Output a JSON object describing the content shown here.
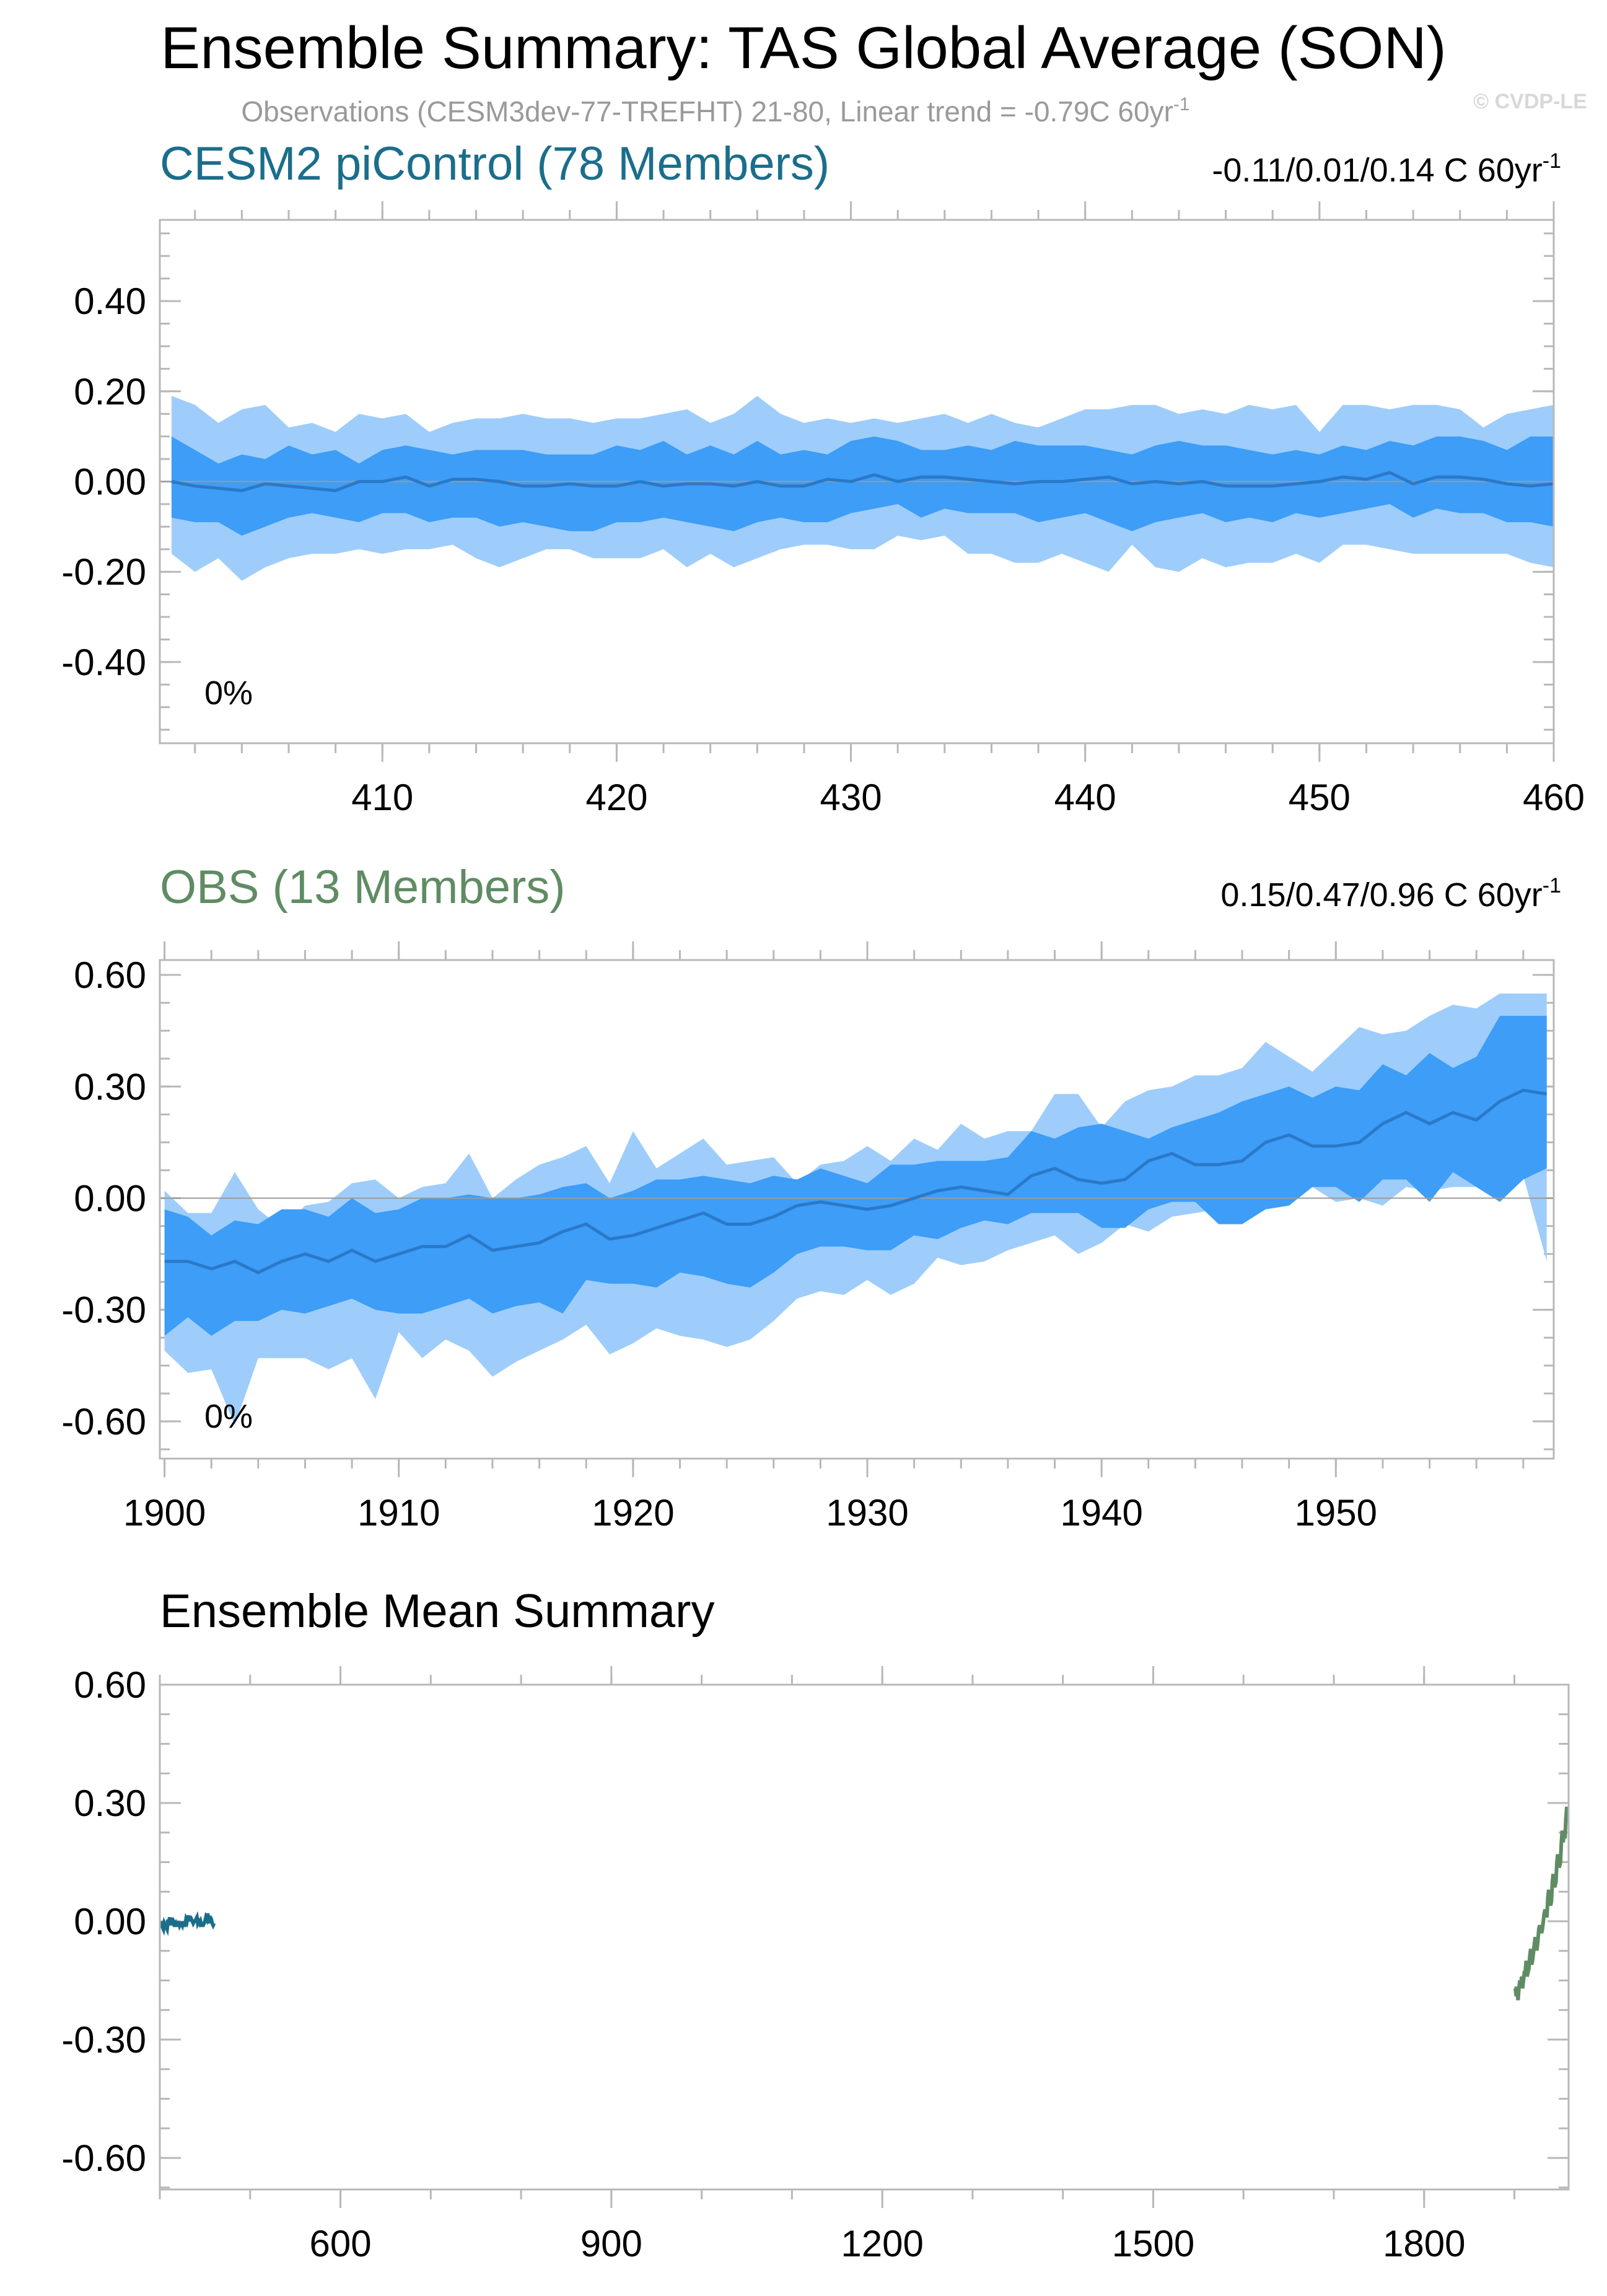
{
  "title": "Ensemble Summary: TAS Global Average (SON)",
  "subtitle": "Observations (CESM3dev-77-TREFHT) 21-80, Linear trend = -0.79C 60yr",
  "subtitle_sup": "-1",
  "watermark": "© CVDP-LE",
  "colors": {
    "outer_band": "#9ecdfb",
    "inner_band": "#3d9df7",
    "mean_line": "#2a79c8",
    "piControl": "#1b6e8b",
    "obs": "#5f8c63"
  },
  "chart_data": [
    {
      "type": "area",
      "name": "piControl",
      "title": "CESM2 piControl (78 Members)",
      "trend_label": "-0.11/0.01/0.14 C 60yr",
      "trend_sup": "-1",
      "percent_label": "0%",
      "xlabel": "",
      "ylabel": "",
      "xlim": [
        400.5,
        460
      ],
      "ylim": [
        -0.58,
        0.58
      ],
      "xticks": [
        "410",
        "420",
        "430",
        "440",
        "450",
        "460"
      ],
      "yticks": [
        "0.40",
        "0.20",
        "0.00",
        "-0.20",
        "-0.40"
      ],
      "x_start": 401,
      "mean": [
        0.0,
        -0.01,
        -0.015,
        -0.02,
        -0.005,
        -0.01,
        -0.015,
        -0.02,
        0.0,
        0.0,
        0.01,
        -0.01,
        0.005,
        0.005,
        0.0,
        -0.01,
        -0.01,
        -0.005,
        -0.01,
        -0.01,
        0.0,
        -0.01,
        -0.005,
        -0.005,
        -0.01,
        0.0,
        -0.01,
        -0.01,
        0.005,
        0.0,
        0.015,
        0.0,
        0.01,
        0.01,
        0.005,
        0.0,
        -0.005,
        0.0,
        0.0,
        0.005,
        0.01,
        -0.005,
        0.0,
        -0.005,
        0.0,
        -0.01,
        -0.01,
        -0.01,
        -0.005,
        0.0,
        0.01,
        0.005,
        0.02,
        -0.005,
        0.01,
        0.01,
        0.005,
        -0.005,
        -0.01,
        -0.005
      ],
      "inner_upper": [
        0.1,
        0.07,
        0.04,
        0.06,
        0.05,
        0.08,
        0.06,
        0.07,
        0.04,
        0.07,
        0.08,
        0.07,
        0.06,
        0.07,
        0.07,
        0.07,
        0.06,
        0.06,
        0.06,
        0.08,
        0.07,
        0.09,
        0.06,
        0.08,
        0.06,
        0.09,
        0.06,
        0.07,
        0.06,
        0.09,
        0.1,
        0.09,
        0.07,
        0.07,
        0.08,
        0.07,
        0.09,
        0.08,
        0.08,
        0.08,
        0.07,
        0.06,
        0.08,
        0.09,
        0.08,
        0.08,
        0.07,
        0.06,
        0.07,
        0.06,
        0.08,
        0.07,
        0.09,
        0.08,
        0.1,
        0.1,
        0.09,
        0.07,
        0.1,
        0.1
      ],
      "inner_lower": [
        -0.08,
        -0.09,
        -0.09,
        -0.12,
        -0.1,
        -0.08,
        -0.07,
        -0.08,
        -0.09,
        -0.07,
        -0.07,
        -0.09,
        -0.08,
        -0.08,
        -0.1,
        -0.09,
        -0.1,
        -0.11,
        -0.11,
        -0.09,
        -0.09,
        -0.08,
        -0.09,
        -0.1,
        -0.11,
        -0.09,
        -0.08,
        -0.09,
        -0.09,
        -0.07,
        -0.06,
        -0.05,
        -0.08,
        -0.06,
        -0.07,
        -0.07,
        -0.07,
        -0.09,
        -0.08,
        -0.07,
        -0.09,
        -0.11,
        -0.09,
        -0.08,
        -0.07,
        -0.09,
        -0.08,
        -0.09,
        -0.07,
        -0.08,
        -0.07,
        -0.06,
        -0.05,
        -0.08,
        -0.06,
        -0.07,
        -0.07,
        -0.09,
        -0.09,
        -0.1
      ],
      "outer_upper": [
        0.19,
        0.17,
        0.13,
        0.16,
        0.17,
        0.12,
        0.13,
        0.11,
        0.15,
        0.14,
        0.15,
        0.11,
        0.13,
        0.14,
        0.14,
        0.15,
        0.14,
        0.14,
        0.13,
        0.14,
        0.14,
        0.15,
        0.16,
        0.13,
        0.15,
        0.19,
        0.15,
        0.13,
        0.14,
        0.13,
        0.14,
        0.13,
        0.14,
        0.15,
        0.13,
        0.15,
        0.13,
        0.12,
        0.14,
        0.16,
        0.16,
        0.17,
        0.17,
        0.15,
        0.16,
        0.15,
        0.17,
        0.16,
        0.17,
        0.11,
        0.17,
        0.17,
        0.16,
        0.17,
        0.17,
        0.16,
        0.12,
        0.15,
        0.16,
        0.17
      ],
      "outer_lower": [
        -0.16,
        -0.2,
        -0.17,
        -0.22,
        -0.19,
        -0.17,
        -0.16,
        -0.16,
        -0.15,
        -0.16,
        -0.15,
        -0.15,
        -0.14,
        -0.17,
        -0.19,
        -0.17,
        -0.15,
        -0.15,
        -0.17,
        -0.17,
        -0.17,
        -0.15,
        -0.19,
        -0.16,
        -0.19,
        -0.17,
        -0.15,
        -0.14,
        -0.14,
        -0.15,
        -0.15,
        -0.12,
        -0.13,
        -0.12,
        -0.16,
        -0.16,
        -0.18,
        -0.18,
        -0.16,
        -0.18,
        -0.2,
        -0.14,
        -0.19,
        -0.2,
        -0.17,
        -0.19,
        -0.18,
        -0.18,
        -0.16,
        -0.18,
        -0.14,
        -0.14,
        -0.15,
        -0.16,
        -0.16,
        -0.16,
        -0.16,
        -0.16,
        -0.18,
        -0.19
      ]
    },
    {
      "type": "area",
      "name": "obs",
      "title": "OBS (13 Members)",
      "trend_label": "0.15/0.47/0.96 C 60yr",
      "trend_sup": "-1",
      "percent_label": "0%",
      "xlabel": "",
      "ylabel": "",
      "xlim": [
        1899.8,
        1959.3
      ],
      "ylim": [
        -0.7,
        0.64
      ],
      "xticks": [
        "1900",
        "1910",
        "1920",
        "1930",
        "1940",
        "1950"
      ],
      "yticks": [
        "0.60",
        "0.30",
        "0.00",
        "-0.30",
        "-0.60"
      ],
      "x_start": 1900,
      "mean": [
        -0.17,
        -0.17,
        -0.19,
        -0.17,
        -0.2,
        -0.17,
        -0.15,
        -0.17,
        -0.14,
        -0.17,
        -0.15,
        -0.13,
        -0.13,
        -0.1,
        -0.14,
        -0.13,
        -0.12,
        -0.09,
        -0.07,
        -0.11,
        -0.1,
        -0.08,
        -0.06,
        -0.04,
        -0.07,
        -0.07,
        -0.05,
        -0.02,
        -0.01,
        -0.02,
        -0.03,
        -0.02,
        0.0,
        0.02,
        0.03,
        0.02,
        0.01,
        0.06,
        0.08,
        0.05,
        0.04,
        0.05,
        0.1,
        0.12,
        0.09,
        0.09,
        0.1,
        0.15,
        0.17,
        0.14,
        0.14,
        0.15,
        0.2,
        0.23,
        0.2,
        0.23,
        0.21,
        0.26,
        0.29,
        0.28
      ],
      "inner_upper": [
        -0.03,
        -0.05,
        -0.1,
        -0.06,
        -0.07,
        -0.03,
        -0.03,
        -0.05,
        0.0,
        -0.04,
        -0.03,
        0.0,
        0.0,
        0.01,
        0.0,
        0.0,
        0.01,
        0.03,
        0.04,
        0.0,
        0.02,
        0.05,
        0.05,
        0.06,
        0.05,
        0.04,
        0.06,
        0.05,
        0.08,
        0.06,
        0.04,
        0.09,
        0.09,
        0.1,
        0.1,
        0.1,
        0.11,
        0.18,
        0.16,
        0.19,
        0.2,
        0.18,
        0.16,
        0.19,
        0.21,
        0.23,
        0.26,
        0.28,
        0.3,
        0.27,
        0.3,
        0.29,
        0.36,
        0.33,
        0.39,
        0.35,
        0.38,
        0.49,
        0.49,
        0.49
      ],
      "inner_lower": [
        -0.37,
        -0.32,
        -0.37,
        -0.33,
        -0.33,
        -0.3,
        -0.31,
        -0.29,
        -0.27,
        -0.3,
        -0.31,
        -0.31,
        -0.29,
        -0.27,
        -0.31,
        -0.29,
        -0.28,
        -0.31,
        -0.22,
        -0.23,
        -0.23,
        -0.24,
        -0.2,
        -0.21,
        -0.23,
        -0.24,
        -0.2,
        -0.15,
        -0.13,
        -0.13,
        -0.14,
        -0.14,
        -0.1,
        -0.11,
        -0.08,
        -0.06,
        -0.07,
        -0.04,
        -0.04,
        -0.04,
        -0.08,
        -0.08,
        -0.03,
        -0.01,
        -0.01,
        -0.07,
        -0.07,
        -0.03,
        -0.02,
        0.03,
        0.03,
        -0.01,
        0.05,
        0.05,
        -0.01,
        0.07,
        0.03,
        -0.01,
        0.05,
        0.08
      ],
      "outer_upper": [
        0.02,
        -0.04,
        -0.04,
        0.07,
        -0.03,
        -0.08,
        -0.02,
        -0.01,
        0.04,
        0.05,
        0.0,
        0.03,
        0.04,
        0.12,
        0.0,
        0.05,
        0.09,
        0.11,
        0.14,
        0.04,
        0.18,
        0.08,
        0.12,
        0.16,
        0.09,
        0.1,
        0.11,
        0.04,
        0.09,
        0.1,
        0.14,
        0.1,
        0.16,
        0.13,
        0.2,
        0.16,
        0.18,
        0.18,
        0.28,
        0.28,
        0.19,
        0.26,
        0.29,
        0.3,
        0.33,
        0.33,
        0.35,
        0.42,
        0.38,
        0.34,
        0.4,
        0.46,
        0.44,
        0.45,
        0.49,
        0.52,
        0.51,
        0.55,
        0.55,
        0.55
      ],
      "outer_lower": [
        -0.41,
        -0.47,
        -0.46,
        -0.61,
        -0.43,
        -0.43,
        -0.43,
        -0.46,
        -0.43,
        -0.54,
        -0.36,
        -0.43,
        -0.38,
        -0.41,
        -0.48,
        -0.44,
        -0.41,
        -0.38,
        -0.34,
        -0.42,
        -0.39,
        -0.35,
        -0.37,
        -0.38,
        -0.4,
        -0.38,
        -0.33,
        -0.27,
        -0.25,
        -0.26,
        -0.22,
        -0.26,
        -0.23,
        -0.16,
        -0.18,
        -0.17,
        -0.14,
        -0.12,
        -0.1,
        -0.15,
        -0.12,
        -0.07,
        -0.09,
        -0.05,
        -0.04,
        -0.03,
        -0.02,
        0.02,
        0.05,
        0.03,
        -0.01,
        0.0,
        -0.02,
        0.03,
        0.02,
        0.03,
        0.03,
        0.0,
        0.06,
        -0.17
      ]
    },
    {
      "type": "line",
      "name": "ensemble-mean",
      "title": "Ensemble Mean Summary",
      "xlabel": "",
      "ylabel": "",
      "xlim": [
        400,
        1960
      ],
      "ylim": [
        -0.68,
        0.6
      ],
      "xticks": [
        "600",
        "900",
        "1200",
        "1500",
        "1800"
      ],
      "yticks": [
        "0.60",
        "0.30",
        "0.00",
        "-0.30",
        "-0.60"
      ],
      "series": [
        {
          "name": "CESM2 piControl",
          "color": "#1b6e8b",
          "x_start": 401,
          "source": "piControl"
        },
        {
          "name": "OBS",
          "color": "#5f8c63",
          "x_start": 1900,
          "source": "obs"
        }
      ]
    }
  ]
}
